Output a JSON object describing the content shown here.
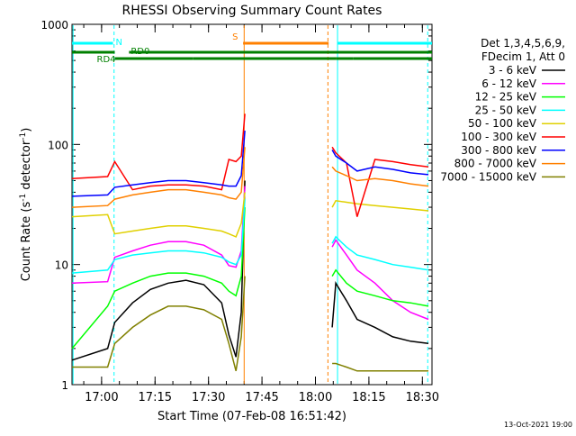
{
  "chart_data": {
    "type": "line",
    "title": "RHESSI Observing Summary Count Rates",
    "xlabel": "Start Time (07-Feb-08 16:51:42)",
    "ylabel_main": "Count Rate (s",
    "ylabel_sup1": "-1",
    "ylabel_mid": " detector",
    "ylabel_sup2": "-1",
    "ylabel_end": ")",
    "yscale": "log",
    "ylim": [
      1,
      1000
    ],
    "xlim_min": [
      0,
      101
    ],
    "x_ticks": [
      {
        "min": 8.3,
        "label": "17:00"
      },
      {
        "min": 23.3,
        "label": "17:15"
      },
      {
        "min": 38.3,
        "label": "17:30"
      },
      {
        "min": 53.3,
        "label": "17:45"
      },
      {
        "min": 68.3,
        "label": "18:00"
      },
      {
        "min": 83.3,
        "label": "18:15"
      },
      {
        "min": 98.3,
        "label": "18:30"
      }
    ],
    "y_ticks": [
      {
        "value": 1,
        "label": "1"
      },
      {
        "value": 10,
        "label": "10"
      },
      {
        "value": 100,
        "label": "100"
      },
      {
        "value": 1000,
        "label": "1000"
      }
    ],
    "legend": {
      "position": "right",
      "header_line1": "Det 1,3,4,5,6,9,",
      "header_line2": "FDecim 1, Att 0"
    },
    "series": [
      {
        "name": "3 - 6 keV",
        "color": "#000000",
        "x": [
          0,
          10,
          12,
          17,
          22,
          27,
          32,
          37,
          42,
          44,
          46,
          47.5,
          48.5,
          50,
          72,
          73,
          74,
          77,
          80,
          85,
          90,
          95,
          100
        ],
        "y": [
          1.6,
          2.0,
          3.3,
          4.8,
          6.2,
          7.0,
          7.4,
          6.8,
          4.8,
          2.6,
          1.7,
          4.0,
          50,
          null,
          null,
          3,
          7,
          5,
          3.5,
          3,
          2.5,
          2.3,
          2.2
        ]
      },
      {
        "name": "6 - 12 keV",
        "color": "#ff00ff",
        "x": [
          0,
          10,
          12,
          17,
          22,
          27,
          32,
          37,
          42,
          44,
          46,
          47.5,
          48.5,
          50,
          72,
          73,
          74,
          77,
          80,
          85,
          90,
          95,
          100
        ],
        "y": [
          7.0,
          7.2,
          11.5,
          13.0,
          14.5,
          15.5,
          15.5,
          14.5,
          12.0,
          9.8,
          9.5,
          13,
          45,
          null,
          null,
          14,
          16,
          12,
          9,
          7,
          5,
          4,
          3.5
        ]
      },
      {
        "name": "12 - 25 keV",
        "color": "#00ff00",
        "x": [
          0,
          10,
          12,
          17,
          22,
          27,
          32,
          37,
          42,
          44,
          46,
          47.5,
          48.5,
          50,
          72,
          73,
          74,
          77,
          80,
          85,
          90,
          95,
          100
        ],
        "y": [
          2.0,
          4.5,
          6.0,
          7.0,
          8.0,
          8.5,
          8.5,
          8.0,
          7.0,
          6.0,
          5.5,
          8,
          30,
          null,
          null,
          8,
          9,
          7,
          6,
          5.5,
          5,
          4.8,
          4.5
        ]
      },
      {
        "name": "25 - 50 keV",
        "color": "#00ffff",
        "x": [
          0,
          10,
          12,
          17,
          22,
          27,
          32,
          37,
          42,
          44,
          46,
          47.5,
          48.5,
          50,
          72,
          73,
          74,
          77,
          80,
          85,
          90,
          95,
          100
        ],
        "y": [
          8.5,
          9.0,
          11.0,
          12.0,
          12.5,
          13.0,
          13.0,
          12.5,
          11.5,
          10.5,
          10.0,
          12,
          35,
          null,
          null,
          15,
          17,
          14,
          12,
          11,
          10,
          9.5,
          9
        ]
      },
      {
        "name": "50 - 100 keV",
        "color": "#e0d000",
        "x": [
          0,
          10,
          12,
          17,
          22,
          27,
          32,
          37,
          42,
          44,
          46,
          47.5,
          48.5,
          50,
          72,
          73,
          74,
          77,
          80,
          85,
          90,
          95,
          100
        ],
        "y": [
          25,
          26,
          18,
          19,
          20,
          21,
          21,
          20,
          19,
          18,
          17,
          22,
          40,
          null,
          null,
          30,
          34,
          33,
          32,
          31,
          30,
          29,
          28
        ]
      },
      {
        "name": "100 - 300 keV",
        "color": "#ff0000",
        "x": [
          0,
          10,
          12,
          17,
          22,
          27,
          32,
          37,
          42,
          44,
          46,
          47.5,
          48.5,
          50,
          72,
          73,
          74,
          77,
          80,
          85,
          90,
          95,
          100
        ],
        "y": [
          52,
          54,
          72,
          42,
          45,
          46,
          46,
          45,
          42,
          75,
          72,
          80,
          180,
          null,
          null,
          95,
          85,
          70,
          25,
          75,
          72,
          68,
          65
        ]
      },
      {
        "name": "300 - 800 keV",
        "color": "#0000ff",
        "x": [
          0,
          10,
          12,
          17,
          22,
          27,
          32,
          37,
          42,
          44,
          46,
          47.5,
          48.5,
          50,
          72,
          73,
          74,
          77,
          80,
          85,
          90,
          95,
          100
        ],
        "y": [
          37,
          38,
          44,
          46,
          48,
          50,
          50,
          48,
          46,
          45,
          45,
          55,
          130,
          null,
          null,
          90,
          80,
          70,
          60,
          65,
          62,
          58,
          56
        ]
      },
      {
        "name": "800 - 7000 keV",
        "color": "#ff8000",
        "x": [
          0,
          10,
          12,
          17,
          22,
          27,
          32,
          37,
          42,
          44,
          46,
          47.5,
          48.5,
          50,
          72,
          73,
          74,
          77,
          80,
          85,
          90,
          95,
          100
        ],
        "y": [
          30,
          31,
          35,
          38,
          40,
          42,
          42,
          40,
          38,
          36,
          35,
          40,
          95,
          null,
          null,
          65,
          60,
          55,
          50,
          52,
          50,
          47,
          45
        ]
      },
      {
        "name": "7000 - 15000 keV",
        "color": "#808000",
        "x": [
          0,
          10,
          12,
          17,
          22,
          27,
          32,
          37,
          42,
          44,
          46,
          47.5,
          48.5,
          50,
          72,
          73,
          74,
          77,
          80,
          85,
          90,
          95,
          100
        ],
        "y": [
          1.4,
          1.4,
          2.2,
          3.0,
          3.8,
          4.5,
          4.5,
          4.2,
          3.5,
          2.2,
          1.3,
          2.5,
          8,
          null,
          null,
          1.5,
          1.5,
          1.4,
          1.3,
          1.3,
          1.3,
          1.3,
          1.3
        ]
      }
    ],
    "state_bars": [
      {
        "label": "N",
        "color": "#00ffff",
        "level": "top",
        "segments": [
          [
            0,
            11.5
          ],
          [
            74.5,
            101
          ]
        ]
      },
      {
        "label": "S",
        "color": "#ff8000",
        "level": "top",
        "segments": [
          [
            48,
            72
          ]
        ]
      },
      {
        "label": "RD0",
        "color": "#008000",
        "level": "mid",
        "segments": [
          [
            0,
            12
          ],
          [
            16,
            101
          ]
        ]
      },
      {
        "label": "RD4",
        "color": "#008000",
        "level": "low",
        "segments": [
          [
            12,
            34
          ],
          [
            34,
            74
          ],
          [
            74,
            79
          ],
          [
            79,
            101
          ]
        ]
      }
    ],
    "boundaries": [
      {
        "min": 0.3,
        "color": "#00ffff",
        "style": "solid"
      },
      {
        "min": 11.8,
        "color": "#00ffff",
        "style": "dashed"
      },
      {
        "min": 48.3,
        "color": "#ff8000",
        "style": "solid"
      },
      {
        "min": 71.8,
        "color": "#ff8000",
        "style": "dashed"
      },
      {
        "min": 74.5,
        "color": "#00ffff",
        "style": "solid"
      },
      {
        "min": 99.8,
        "color": "#00ffff",
        "style": "dashed"
      }
    ],
    "footer_date": "13-Oct-2021 19:00"
  }
}
